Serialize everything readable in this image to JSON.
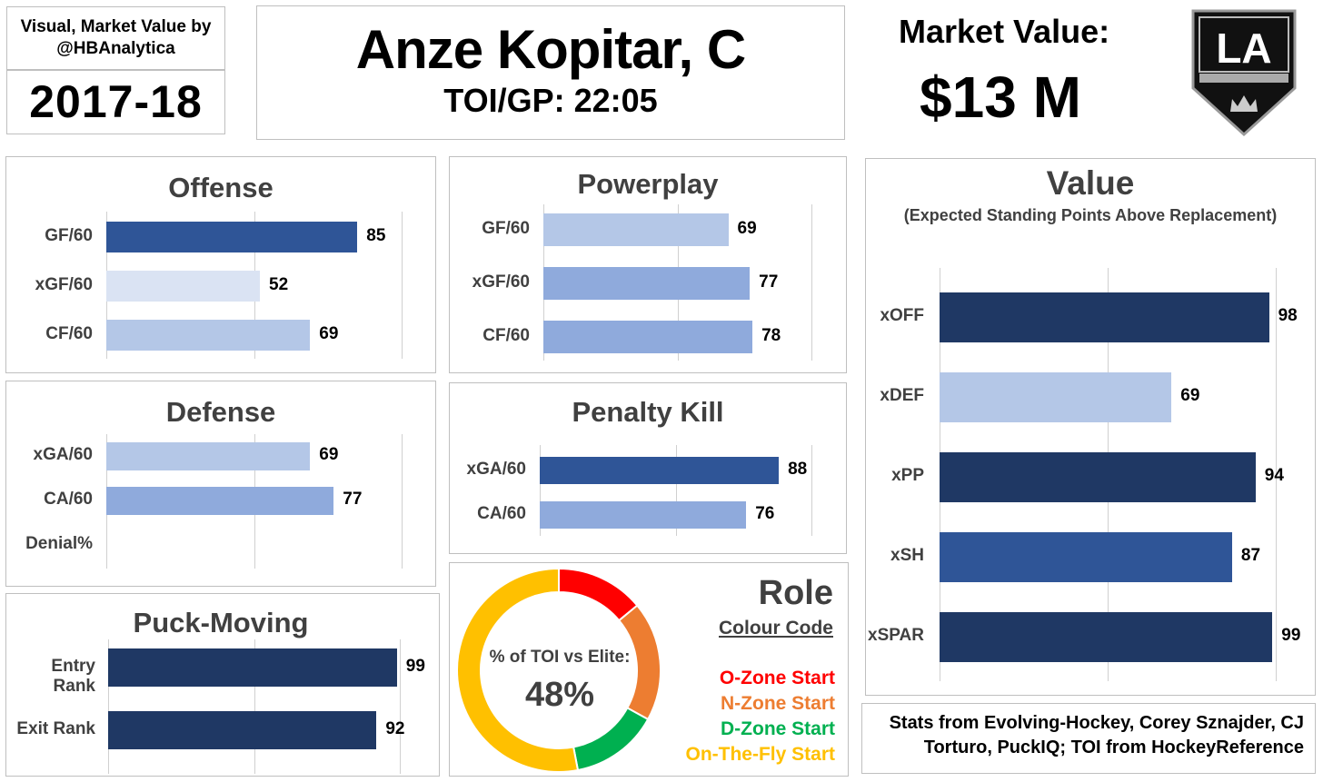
{
  "header": {
    "credit": "Visual, Market Value by @HBAnalytica",
    "season": "2017-18",
    "player_name": "Anze Kopitar, C",
    "toi": "TOI/GP: 22:05",
    "market_value_label": "Market Value:",
    "market_value": "$13 M",
    "team_logo_icon": "la-kings-shield-logo",
    "team_logo_text": "LA"
  },
  "colors": {
    "dark_navy": "#1f3864",
    "mid_blue": "#2f5597",
    "light_blue": "#8faadc",
    "pale_blue": "#b4c7e7",
    "very_pale_blue": "#dae3f3",
    "o_zone": "#ff0000",
    "n_zone": "#ed7d31",
    "d_zone": "#00b050",
    "on_the_fly": "#ffc000"
  },
  "chart_data": [
    {
      "type": "bar",
      "title": "Offense",
      "categories": [
        "GF/60",
        "xGF/60",
        "CF/60"
      ],
      "values": [
        85,
        52,
        69
      ],
      "colors": [
        "#2f5597",
        "#dae3f3",
        "#b4c7e7"
      ],
      "xlim": [
        0,
        100
      ]
    },
    {
      "type": "bar",
      "title": "Powerplay",
      "categories": [
        "GF/60",
        "xGF/60",
        "CF/60"
      ],
      "values": [
        69,
        77,
        78
      ],
      "colors": [
        "#b4c7e7",
        "#8faadc",
        "#8faadc"
      ],
      "xlim": [
        0,
        100
      ]
    },
    {
      "type": "bar",
      "title": "Defense",
      "categories": [
        "xGA/60",
        "CA/60",
        "Denial%"
      ],
      "values": [
        69,
        77,
        null
      ],
      "colors": [
        "#b4c7e7",
        "#8faadc",
        "#ffffff"
      ],
      "xlim": [
        0,
        100
      ]
    },
    {
      "type": "bar",
      "title": "Penalty Kill",
      "categories": [
        "xGA/60",
        "CA/60"
      ],
      "values": [
        88,
        76
      ],
      "colors": [
        "#2f5597",
        "#8faadc"
      ],
      "xlim": [
        0,
        100
      ]
    },
    {
      "type": "bar",
      "title": "Puck-Moving",
      "categories": [
        "Entry Rank",
        "Exit Rank"
      ],
      "values": [
        99,
        92
      ],
      "colors": [
        "#1f3864",
        "#1f3864"
      ],
      "xlim": [
        0,
        100
      ]
    },
    {
      "type": "bar",
      "title": "Value",
      "subtitle": "(Expected Standing Points Above Replacement)",
      "categories": [
        "xOFF",
        "xDEF",
        "xPP",
        "xSH",
        "xSPAR"
      ],
      "values": [
        98,
        69,
        94,
        87,
        99
      ],
      "colors": [
        "#1f3864",
        "#b4c7e7",
        "#1f3864",
        "#2f5597",
        "#1f3864"
      ],
      "xlim": [
        0,
        100
      ]
    },
    {
      "type": "pie",
      "title": "Role",
      "subtitle": "Colour Code",
      "center_label": "% of TOI vs Elite:",
      "center_value": "48%",
      "slices": [
        {
          "name": "O-Zone Start",
          "value": 14,
          "color": "#ff0000"
        },
        {
          "name": "N-Zone Start",
          "value": 19,
          "color": "#ed7d31"
        },
        {
          "name": "D-Zone Start",
          "value": 14,
          "color": "#00b050"
        },
        {
          "name": "On-The-Fly Start",
          "value": 53,
          "color": "#ffc000"
        }
      ]
    }
  ],
  "footer": {
    "source": "Stats from Evolving-Hockey, Corey Sznajder, CJ Torturo, PuckIQ; TOI from HockeyReference"
  }
}
